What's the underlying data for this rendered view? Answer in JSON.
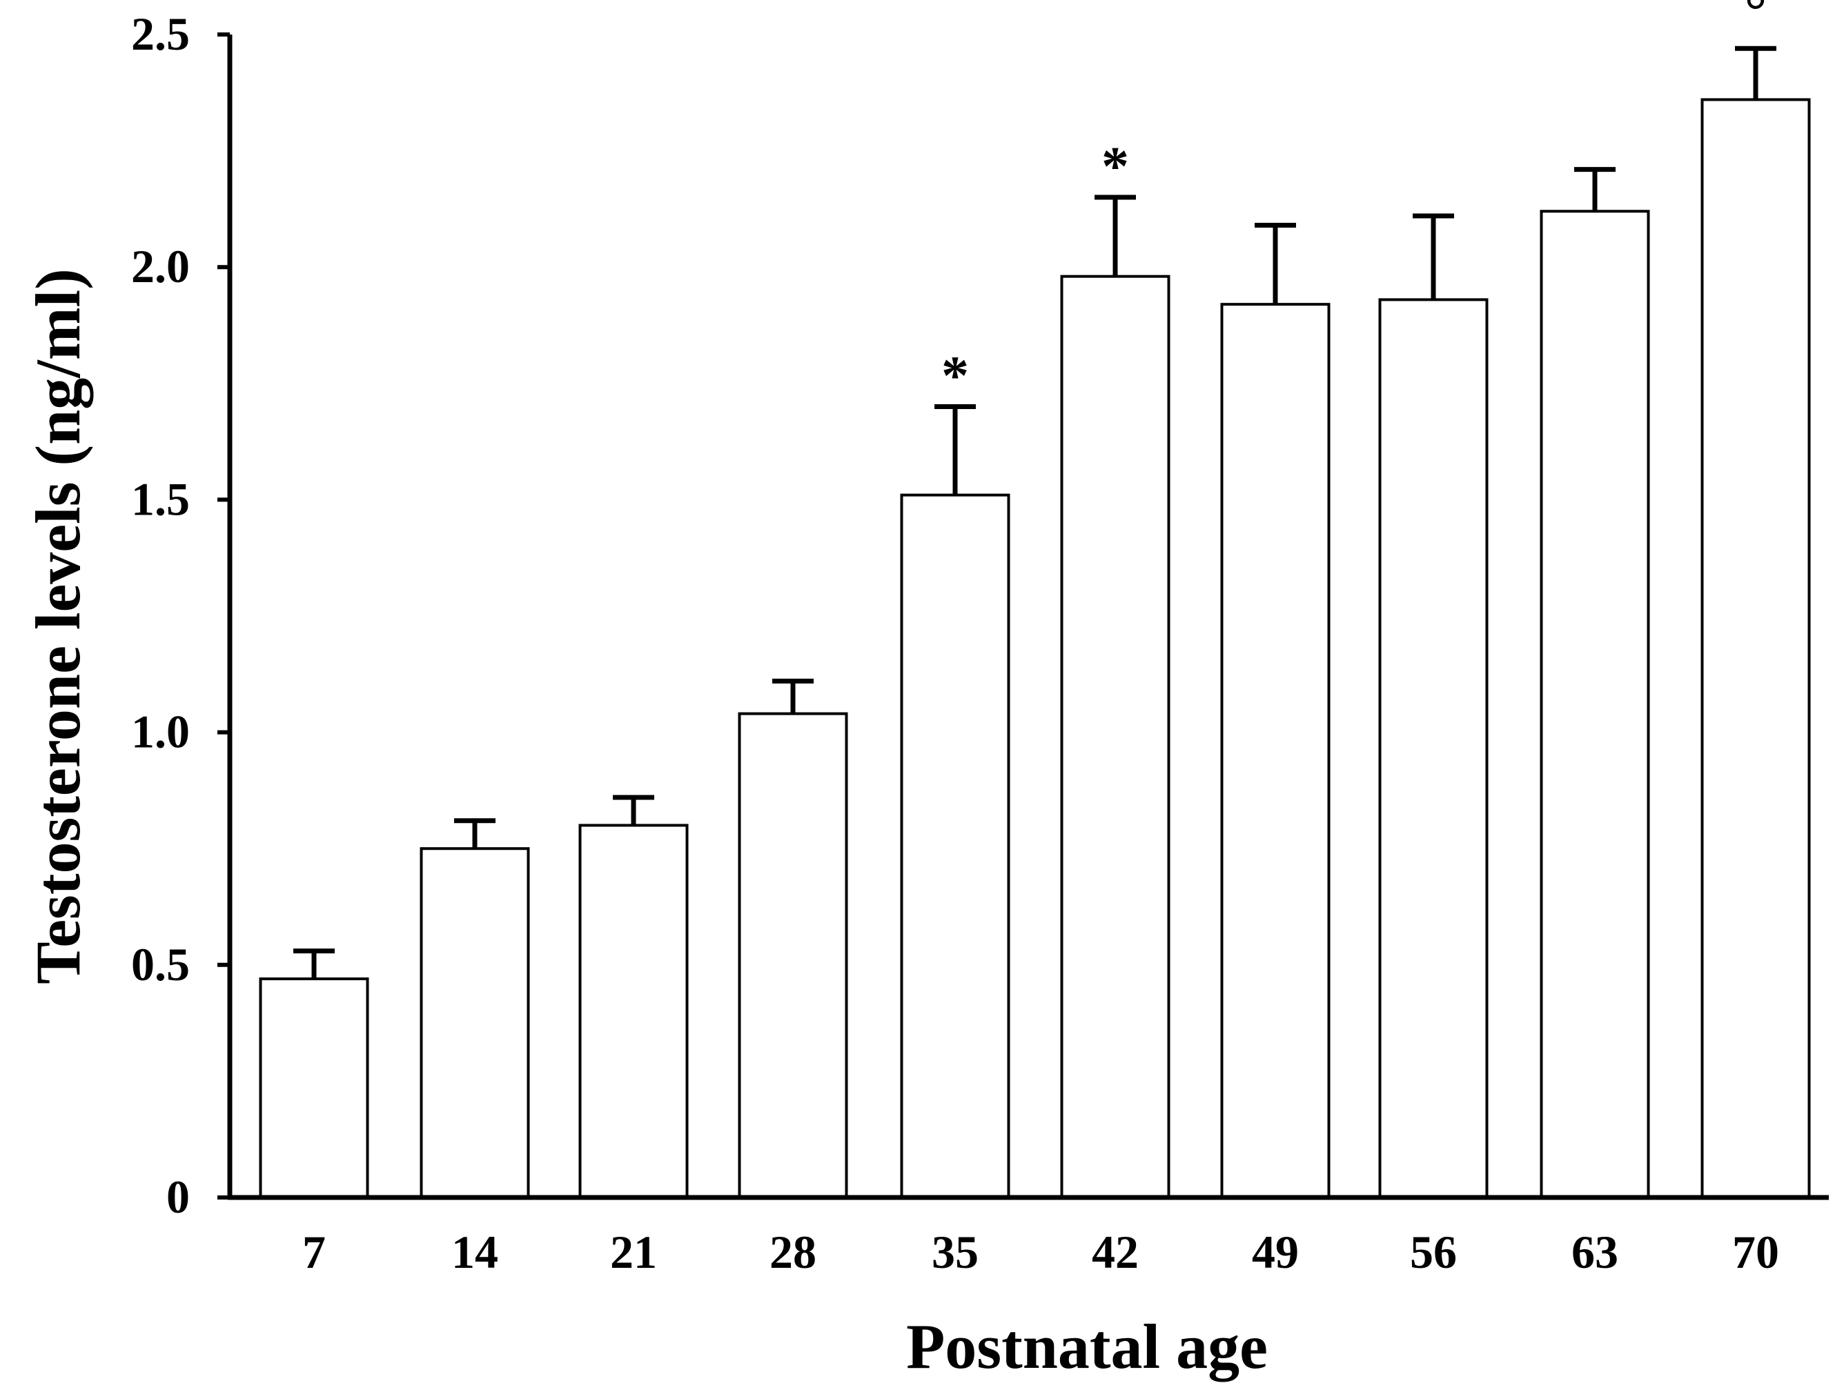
{
  "chart_data": {
    "type": "bar",
    "title": "",
    "xlabel": "Postnatal age",
    "ylabel": "Testosterone levels (ng/ml)",
    "categories": [
      "7",
      "14",
      "21",
      "28",
      "35",
      "42",
      "49",
      "56",
      "63",
      "70"
    ],
    "values": [
      0.47,
      0.75,
      0.8,
      1.04,
      1.51,
      1.98,
      1.92,
      1.93,
      2.12,
      2.36
    ],
    "errors": [
      0.06,
      0.06,
      0.06,
      0.07,
      0.19,
      0.17,
      0.17,
      0.18,
      0.09,
      0.11
    ],
    "annotations": [
      "",
      "",
      "",
      "",
      "*",
      "*",
      "",
      "",
      "",
      "°"
    ],
    "ylim": [
      0,
      2.5
    ],
    "yticks": [
      0,
      0.5,
      1.0,
      1.5,
      2.0,
      2.5
    ],
    "ytick_labels": [
      "0",
      "0.5",
      "1.0",
      "1.5",
      "2.0",
      "2.5"
    ],
    "grid": false,
    "colors": {
      "bar_fill": "#ffffff",
      "bar_stroke": "#000000"
    }
  }
}
